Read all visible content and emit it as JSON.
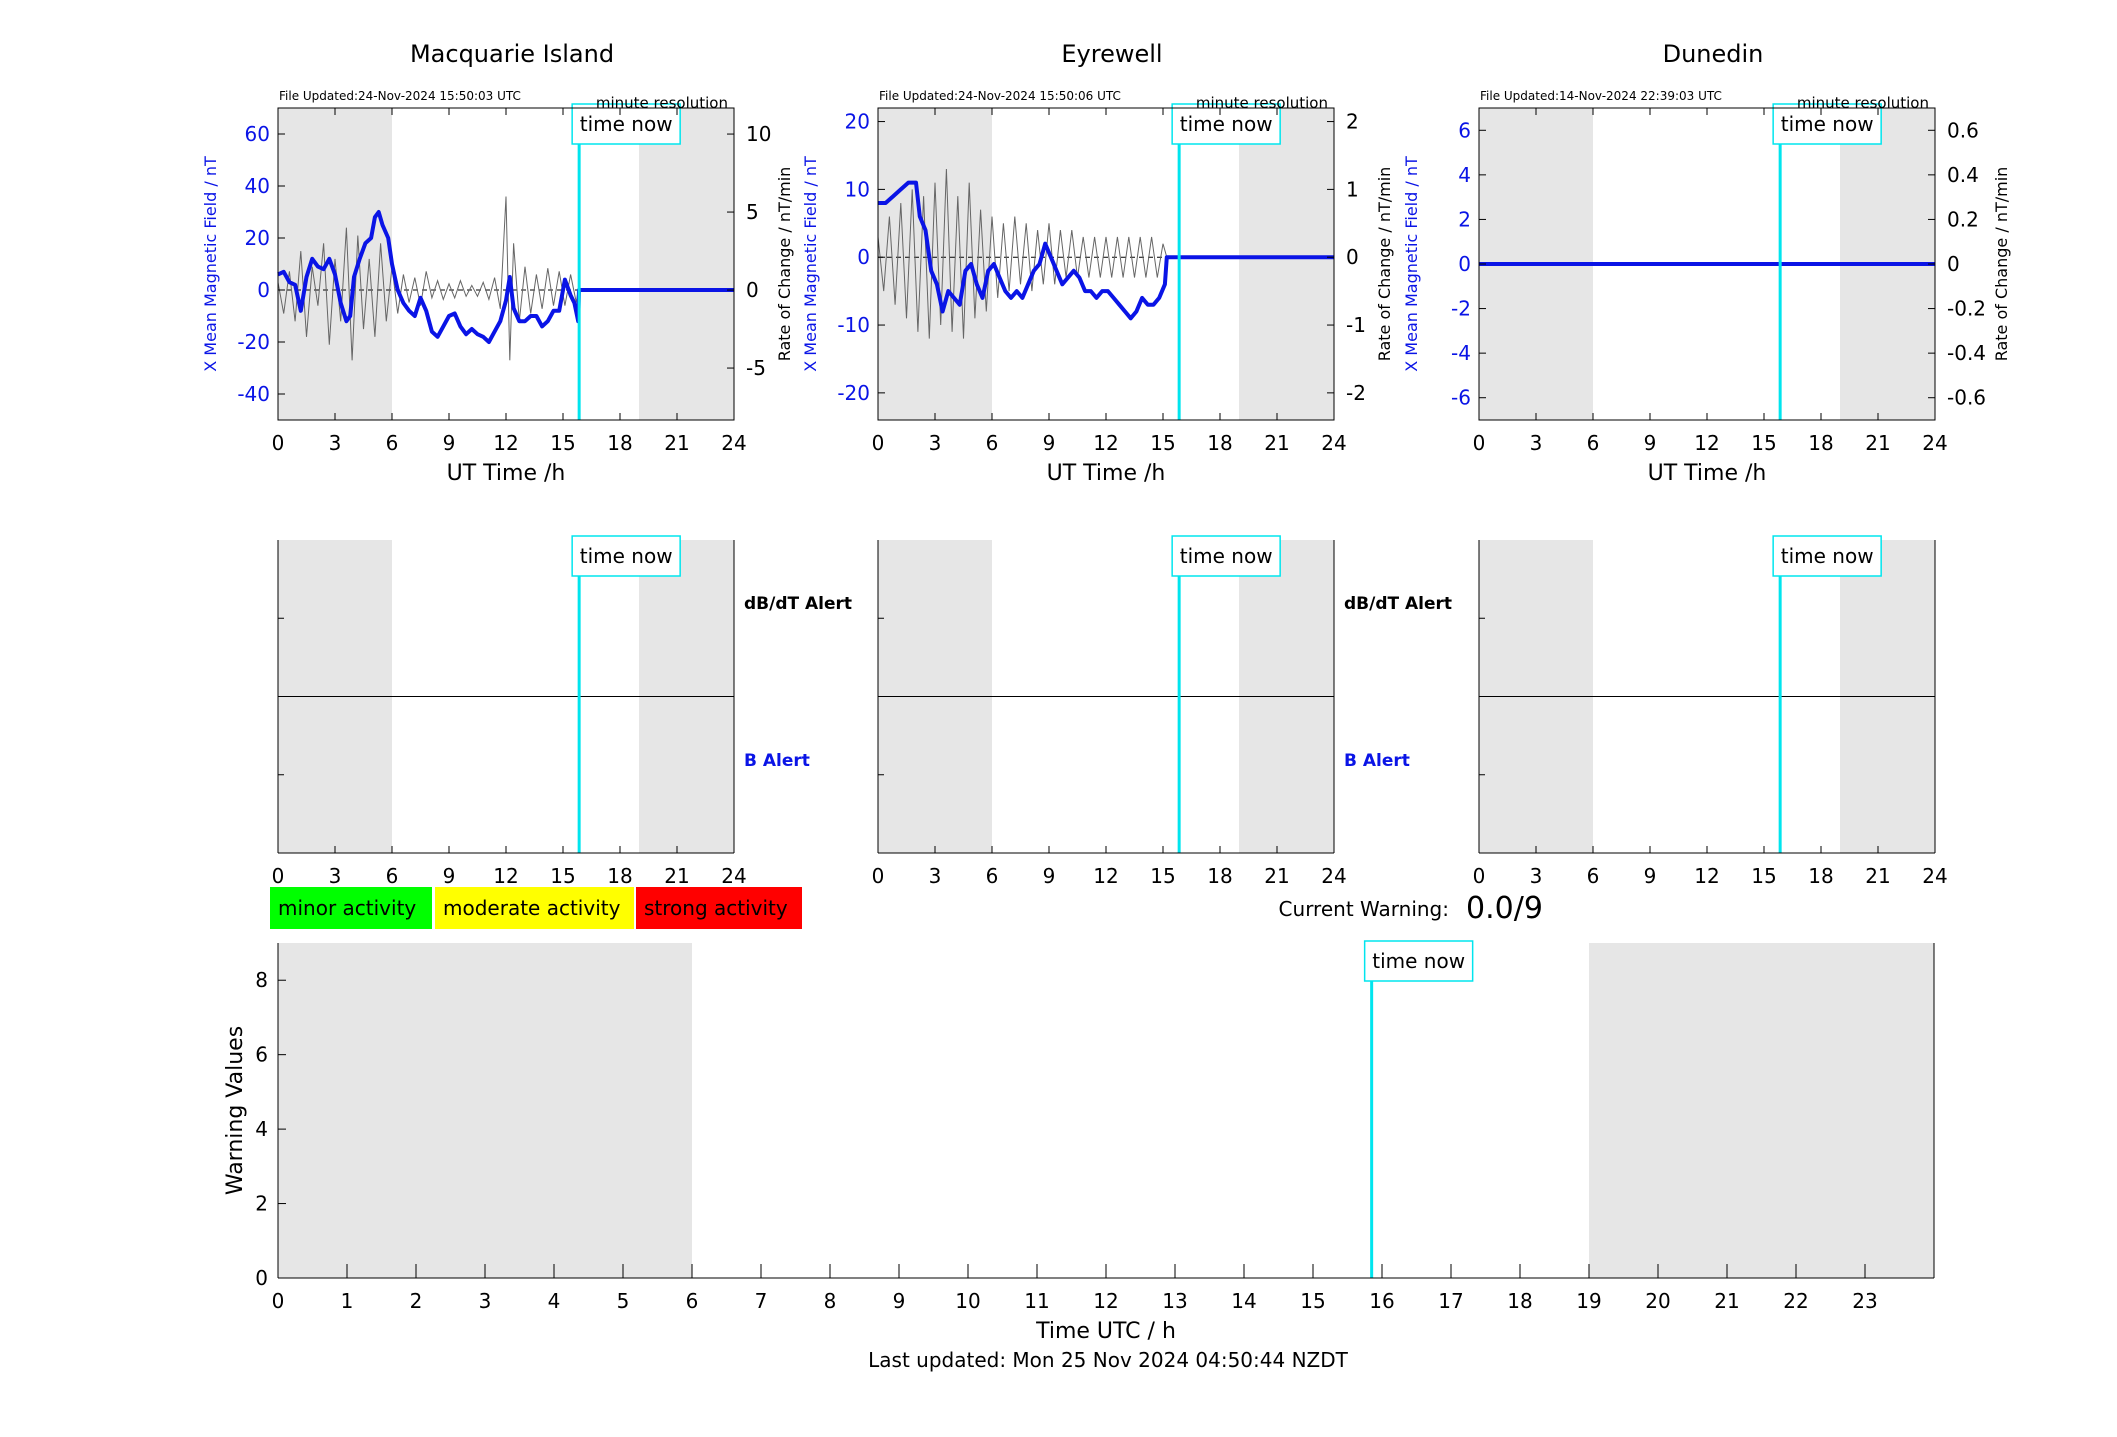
{
  "figure": {
    "last_updated": "Last updated: Mon 25 Nov 2024 04:50:44 NZDT",
    "time_now_label": "time now",
    "time_now_hour": 15.85,
    "night_shading_hours": [
      [
        0,
        6
      ],
      [
        19,
        24
      ]
    ],
    "shade_color": "#e6e6e6",
    "time_now_color": "#00e5ee",
    "field_color": "#0a14e6",
    "rate_color": "#666666"
  },
  "stations": [
    {
      "name": "Macquarie Island",
      "file_updated": "File Updated:24-Nov-2024 15:50:03 UTC",
      "resolution": "minute resolution",
      "left_ylabel": "X Mean Magnetic Field / nT",
      "right_ylabel": "Rate of Change / nT/min",
      "xlabel": "UT Time /h",
      "left_ylim": [
        -50,
        70
      ],
      "left_ticks": [
        -40,
        -20,
        0,
        20,
        40,
        60
      ],
      "right_ylim": [
        -8.33,
        11.67
      ],
      "right_ticks": [
        -5,
        0,
        5,
        10
      ],
      "right_tick_labels": [
        "-5",
        "0",
        "5",
        "10"
      ],
      "data_end_hour": 15.83,
      "field_series": [
        [
          0,
          6
        ],
        [
          0.3,
          7
        ],
        [
          0.6,
          3
        ],
        [
          0.9,
          2
        ],
        [
          1.2,
          -8
        ],
        [
          1.5,
          5
        ],
        [
          1.8,
          12
        ],
        [
          2.1,
          9
        ],
        [
          2.4,
          8
        ],
        [
          2.7,
          12
        ],
        [
          3.0,
          6
        ],
        [
          3.3,
          -5
        ],
        [
          3.6,
          -12
        ],
        [
          3.8,
          -10
        ],
        [
          4.0,
          5
        ],
        [
          4.3,
          12
        ],
        [
          4.6,
          18
        ],
        [
          4.9,
          20
        ],
        [
          5.1,
          28
        ],
        [
          5.3,
          30
        ],
        [
          5.5,
          25
        ],
        [
          5.8,
          20
        ],
        [
          6.0,
          10
        ],
        [
          6.3,
          0
        ],
        [
          6.6,
          -5
        ],
        [
          6.9,
          -8
        ],
        [
          7.2,
          -10
        ],
        [
          7.5,
          -3
        ],
        [
          7.8,
          -8
        ],
        [
          8.1,
          -16
        ],
        [
          8.4,
          -18
        ],
        [
          8.7,
          -14
        ],
        [
          9.0,
          -10
        ],
        [
          9.3,
          -9
        ],
        [
          9.6,
          -14
        ],
        [
          9.9,
          -17
        ],
        [
          10.2,
          -15
        ],
        [
          10.5,
          -17
        ],
        [
          10.8,
          -18
        ],
        [
          11.1,
          -20
        ],
        [
          11.4,
          -16
        ],
        [
          11.7,
          -12
        ],
        [
          12.0,
          -4
        ],
        [
          12.2,
          5
        ],
        [
          12.4,
          -7
        ],
        [
          12.7,
          -12
        ],
        [
          13.0,
          -12
        ],
        [
          13.3,
          -10
        ],
        [
          13.6,
          -10
        ],
        [
          13.9,
          -14
        ],
        [
          14.2,
          -12
        ],
        [
          14.5,
          -8
        ],
        [
          14.8,
          -8
        ],
        [
          15.1,
          4
        ],
        [
          15.4,
          -2
        ],
        [
          15.6,
          -5
        ],
        [
          15.8,
          -12
        ],
        [
          15.84,
          0
        ],
        [
          24,
          0
        ]
      ],
      "rate_series": [
        [
          0,
          0.5
        ],
        [
          0.3,
          -1.5
        ],
        [
          0.6,
          1.2
        ],
        [
          0.9,
          -2
        ],
        [
          1.2,
          2.5
        ],
        [
          1.5,
          -3
        ],
        [
          1.8,
          1.5
        ],
        [
          2.1,
          -1
        ],
        [
          2.4,
          3
        ],
        [
          2.7,
          -3.5
        ],
        [
          3.0,
          2
        ],
        [
          3.3,
          -2
        ],
        [
          3.6,
          4
        ],
        [
          3.9,
          -4.5
        ],
        [
          4.2,
          3.5
        ],
        [
          4.5,
          -2.5
        ],
        [
          4.8,
          2
        ],
        [
          5.1,
          -3
        ],
        [
          5.4,
          3
        ],
        [
          5.7,
          -2
        ],
        [
          6.0,
          1.5
        ],
        [
          6.3,
          -1.5
        ],
        [
          6.6,
          1
        ],
        [
          6.9,
          -0.8
        ],
        [
          7.2,
          0.8
        ],
        [
          7.5,
          -1
        ],
        [
          7.8,
          1.2
        ],
        [
          8.1,
          -0.5
        ],
        [
          8.4,
          0.6
        ],
        [
          8.7,
          -0.6
        ],
        [
          9.0,
          0.4
        ],
        [
          9.3,
          -0.5
        ],
        [
          9.6,
          0.6
        ],
        [
          9.9,
          -0.4
        ],
        [
          10.2,
          0.3
        ],
        [
          10.5,
          -0.4
        ],
        [
          10.8,
          0.5
        ],
        [
          11.1,
          -0.6
        ],
        [
          11.4,
          0.8
        ],
        [
          11.7,
          -1.2
        ],
        [
          12.0,
          6
        ],
        [
          12.2,
          -4.5
        ],
        [
          12.4,
          3
        ],
        [
          12.7,
          -2
        ],
        [
          13.0,
          1.5
        ],
        [
          13.3,
          -1.5
        ],
        [
          13.6,
          1
        ],
        [
          13.9,
          -1.2
        ],
        [
          14.2,
          1.4
        ],
        [
          14.5,
          -1
        ],
        [
          14.8,
          1.2
        ],
        [
          15.1,
          -1
        ],
        [
          15.4,
          1
        ],
        [
          15.7,
          -0.8
        ],
        [
          15.8,
          0
        ]
      ]
    },
    {
      "name": "Eyrewell",
      "file_updated": "File Updated:24-Nov-2024 15:50:06 UTC",
      "resolution": "minute resolution",
      "left_ylabel": "X Mean Magnetic Field / nT",
      "right_ylabel": "Rate of Change / nT/min",
      "xlabel": "UT Time /h",
      "left_ylim": [
        -24,
        22
      ],
      "left_ticks": [
        -20,
        -10,
        0,
        10,
        20
      ],
      "right_ylim": [
        -2.4,
        2.2
      ],
      "right_ticks": [
        -2,
        -1,
        0,
        1,
        2
      ],
      "right_tick_labels": [
        "-2",
        "-1",
        "0",
        "1",
        "2"
      ],
      "data_end_hour": 15.83,
      "field_series": [
        [
          0,
          8
        ],
        [
          0.4,
          8
        ],
        [
          0.8,
          9
        ],
        [
          1.2,
          10
        ],
        [
          1.6,
          11
        ],
        [
          2.0,
          11
        ],
        [
          2.2,
          6
        ],
        [
          2.5,
          4
        ],
        [
          2.8,
          -2
        ],
        [
          3.1,
          -4
        ],
        [
          3.4,
          -8
        ],
        [
          3.7,
          -5
        ],
        [
          4.0,
          -6
        ],
        [
          4.3,
          -7
        ],
        [
          4.6,
          -2
        ],
        [
          4.9,
          -1
        ],
        [
          5.2,
          -4
        ],
        [
          5.5,
          -6
        ],
        [
          5.8,
          -2
        ],
        [
          6.1,
          -1
        ],
        [
          6.4,
          -3
        ],
        [
          6.7,
          -5
        ],
        [
          7.0,
          -6
        ],
        [
          7.3,
          -5
        ],
        [
          7.6,
          -6
        ],
        [
          7.9,
          -4
        ],
        [
          8.2,
          -2
        ],
        [
          8.5,
          -1
        ],
        [
          8.8,
          2
        ],
        [
          9.1,
          0
        ],
        [
          9.4,
          -2
        ],
        [
          9.7,
          -4
        ],
        [
          10.0,
          -3
        ],
        [
          10.3,
          -2
        ],
        [
          10.6,
          -3
        ],
        [
          10.9,
          -5
        ],
        [
          11.2,
          -5
        ],
        [
          11.5,
          -6
        ],
        [
          11.8,
          -5
        ],
        [
          12.1,
          -5
        ],
        [
          12.4,
          -6
        ],
        [
          12.7,
          -7
        ],
        [
          13.0,
          -8
        ],
        [
          13.3,
          -9
        ],
        [
          13.6,
          -8
        ],
        [
          13.9,
          -6
        ],
        [
          14.2,
          -7
        ],
        [
          14.5,
          -7
        ],
        [
          14.8,
          -6
        ],
        [
          15.1,
          -4
        ],
        [
          15.2,
          0
        ],
        [
          24,
          0
        ]
      ],
      "rate_series": [
        [
          0,
          0.3
        ],
        [
          0.3,
          -0.5
        ],
        [
          0.6,
          0.6
        ],
        [
          0.9,
          -0.7
        ],
        [
          1.2,
          0.8
        ],
        [
          1.5,
          -0.9
        ],
        [
          1.8,
          1.0
        ],
        [
          2.1,
          -1.1
        ],
        [
          2.4,
          0.9
        ],
        [
          2.7,
          -1.2
        ],
        [
          3.0,
          1.1
        ],
        [
          3.3,
          -1.0
        ],
        [
          3.6,
          1.3
        ],
        [
          3.9,
          -1.1
        ],
        [
          4.2,
          0.9
        ],
        [
          4.5,
          -1.2
        ],
        [
          4.8,
          1.1
        ],
        [
          5.1,
          -0.9
        ],
        [
          5.4,
          0.7
        ],
        [
          5.7,
          -0.8
        ],
        [
          6.0,
          0.6
        ],
        [
          6.3,
          -0.6
        ],
        [
          6.6,
          0.5
        ],
        [
          6.9,
          -0.5
        ],
        [
          7.2,
          0.6
        ],
        [
          7.5,
          -0.4
        ],
        [
          7.8,
          0.5
        ],
        [
          8.1,
          -0.5
        ],
        [
          8.4,
          0.4
        ],
        [
          8.7,
          -0.4
        ],
        [
          9.0,
          0.5
        ],
        [
          9.3,
          -0.4
        ],
        [
          9.6,
          0.4
        ],
        [
          9.9,
          -0.3
        ],
        [
          10.2,
          0.4
        ],
        [
          10.5,
          -0.3
        ],
        [
          10.8,
          0.3
        ],
        [
          11.1,
          -0.3
        ],
        [
          11.4,
          0.3
        ],
        [
          11.7,
          -0.3
        ],
        [
          12.0,
          0.3
        ],
        [
          12.3,
          -0.3
        ],
        [
          12.6,
          0.3
        ],
        [
          12.9,
          -0.3
        ],
        [
          13.2,
          0.3
        ],
        [
          13.5,
          -0.3
        ],
        [
          13.8,
          0.3
        ],
        [
          14.1,
          -0.3
        ],
        [
          14.4,
          0.3
        ],
        [
          14.7,
          -0.3
        ],
        [
          15.0,
          0.2
        ],
        [
          15.2,
          0
        ]
      ]
    },
    {
      "name": "Dunedin",
      "file_updated": "File Updated:14-Nov-2024 22:39:03 UTC",
      "resolution": "minute resolution",
      "left_ylabel": "X Mean Magnetic Field / nT",
      "right_ylabel": "Rate of Change / nT/min",
      "xlabel": "UT Time /h",
      "left_ylim": [
        -7,
        7
      ],
      "left_ticks": [
        -6,
        -4,
        -2,
        0,
        2,
        4,
        6
      ],
      "right_ylim": [
        -0.7,
        0.7
      ],
      "right_ticks": [
        -0.6,
        -0.4,
        -0.2,
        0,
        0.2,
        0.4,
        0.6
      ],
      "right_tick_labels": [
        "-0.6",
        "-0.4",
        "-0.2",
        "0",
        "0.2",
        "0.4",
        "0.6"
      ],
      "data_end_hour": 0,
      "field_series": [
        [
          0,
          0
        ],
        [
          24,
          0
        ]
      ],
      "rate_series": []
    }
  ],
  "alerts": {
    "dbdt_label": "dB/dT Alert",
    "b_label": "B Alert",
    "dbdt_color": "#000000",
    "b_color": "#0a14e6"
  },
  "legend": [
    {
      "label": "minor activity",
      "color": "#00ff00"
    },
    {
      "label": "moderate activity",
      "color": "#ffff00"
    },
    {
      "label": "strong activity",
      "color": "#ff0000"
    }
  ],
  "current_warning": {
    "label": "Current Warning:",
    "value": "0.0/9"
  },
  "chart_data": [
    {
      "type": "line",
      "title": "Macquarie Island",
      "xlabel": "UT Time /h",
      "ylabel": "X Mean Magnetic Field / nT",
      "y2label": "Rate of Change / nT/min",
      "xlim": [
        0,
        24
      ],
      "ylim": [
        -50,
        70
      ],
      "y2lim": [
        -8.33,
        11.67
      ],
      "series": [
        {
          "name": "",
          "axis": "left",
          "ref": "stations.0.field_series"
        },
        {
          "name": "",
          "axis": "right",
          "ref": "stations.0.rate_series"
        }
      ]
    },
    {
      "type": "line",
      "title": "Eyrewell",
      "xlabel": "UT Time /h",
      "ylabel": "X Mean Magnetic Field / nT",
      "y2label": "Rate of Change / nT/min",
      "xlim": [
        0,
        24
      ],
      "ylim": [
        -24,
        22
      ],
      "y2lim": [
        -2.4,
        2.2
      ],
      "series": [
        {
          "name": "",
          "axis": "left",
          "ref": "stations.1.field_series"
        },
        {
          "name": "",
          "axis": "right",
          "ref": "stations.1.rate_series"
        }
      ]
    },
    {
      "type": "line",
      "title": "Dunedin",
      "xlabel": "UT Time /h",
      "ylabel": "X Mean Magnetic Field / nT",
      "y2label": "Rate of Change / nT/min",
      "xlim": [
        0,
        24
      ],
      "ylim": [
        -7,
        7
      ],
      "y2lim": [
        -0.7,
        0.7
      ],
      "series": [
        {
          "name": "",
          "axis": "left",
          "ref": "stations.2.field_series"
        }
      ]
    },
    {
      "type": "bar",
      "title": "",
      "xlabel": "Time UTC / h",
      "ylabel": "Warning Values",
      "xlim": [
        0,
        24
      ],
      "ylim": [
        0,
        9
      ],
      "x_ticks": [
        0,
        1,
        2,
        3,
        4,
        5,
        6,
        7,
        8,
        9,
        10,
        11,
        12,
        13,
        14,
        15,
        16,
        17,
        18,
        19,
        20,
        21,
        22,
        23
      ],
      "y_ticks": [
        0,
        2,
        4,
        6,
        8
      ],
      "values": []
    }
  ]
}
